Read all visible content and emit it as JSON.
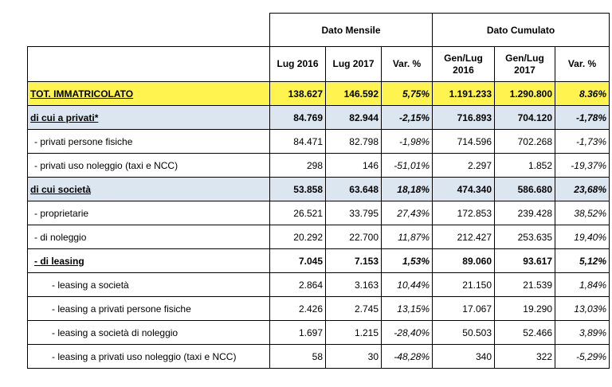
{
  "groups": {
    "monthly": "Dato Mensile",
    "cumulative": "Dato Cumulato"
  },
  "columns": {
    "m1": "Lug 2016",
    "m2": "Lug 2017",
    "mv": "Var. %",
    "c1a": "Gen/Lug",
    "c1b": "2016",
    "c2a": "Gen/Lug",
    "c2b": "2017",
    "cv": "Var. %"
  },
  "rows": [
    {
      "label": "TOT. IMMATRICOLATO",
      "v": [
        "138.627",
        "146.592",
        "5,75%",
        "1.191.233",
        "1.290.800",
        "8.36%"
      ]
    },
    {
      "label": "di cui a privati*",
      "v": [
        "84.769",
        "82.944",
        "-2,15%",
        "716.893",
        "704.120",
        "-1,78%"
      ]
    },
    {
      "label": "-  privati persone fisiche",
      "v": [
        "84.471",
        "82.798",
        "-1,98%",
        "714.596",
        "702.268",
        "-1,73%"
      ]
    },
    {
      "label": "-  privati uso noleggio (taxi e NCC)",
      "v": [
        "298",
        "146",
        "-51,01%",
        "2.297",
        "1.852",
        "-19,37%"
      ]
    },
    {
      "label": "di cui società",
      "v": [
        "53.858",
        "63.648",
        "18,18%",
        "474.340",
        "586.680",
        "23,68%"
      ]
    },
    {
      "label": "-  proprietarie",
      "v": [
        "26.521",
        "33.795",
        "27,43%",
        "172.853",
        "239.428",
        "38,52%"
      ]
    },
    {
      "label": "-  di noleggio",
      "v": [
        "20.292",
        "22.700",
        "11,87%",
        "212.427",
        "253.635",
        "19,40%"
      ]
    },
    {
      "label": "-  di leasing",
      "v": [
        "7.045",
        "7.153",
        "1,53%",
        "89.060",
        "93.617",
        "5,12%"
      ]
    },
    {
      "label": "-  leasing a società",
      "v": [
        "2.864",
        "3.163",
        "10,44%",
        "21.150",
        "21.539",
        "1,84%"
      ]
    },
    {
      "label": "-  leasing a privati persone fisiche",
      "v": [
        "2.426",
        "2.745",
        "13,15%",
        "17.067",
        "19.290",
        "13,03%"
      ]
    },
    {
      "label": "-  leasing a società di noleggio",
      "v": [
        "1.697",
        "1.215",
        "-28,40%",
        "50.503",
        "52.466",
        "3,89%"
      ]
    },
    {
      "label": "-  leasing a privati uso noleggio (taxi e NCC)",
      "v": [
        "58",
        "30",
        "-48,28%",
        "340",
        "322",
        "-5,29%"
      ]
    }
  ]
}
